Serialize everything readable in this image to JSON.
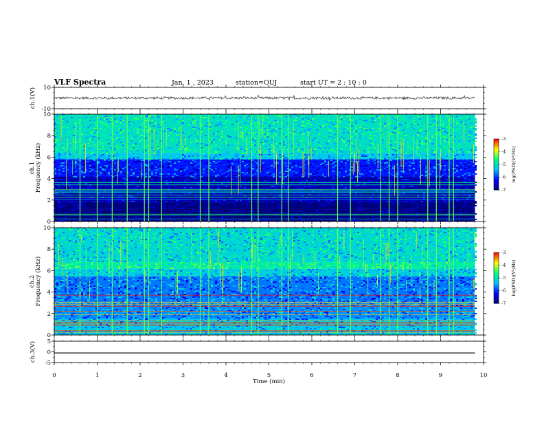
{
  "header": {
    "title": "VLF Spectra",
    "date": "Jan. 1 , 2023",
    "station": "station=OUJ",
    "start_ut": "start UT =  2 : 10 : 0"
  },
  "chart_data": [
    {
      "type": "line",
      "name": "ch1-waveform",
      "ylabel": "ch.1(V)",
      "ylim": [
        -10,
        10
      ],
      "yticks": [
        "10",
        "-10"
      ],
      "xlim": [
        0,
        10
      ],
      "trace_extent_min": [
        0,
        9.8
      ],
      "mean_value": 0,
      "noise_amplitude": 1.2
    },
    {
      "type": "heatmap",
      "name": "ch1-spectrogram",
      "ylabel": "ch.1 Frequency (kHz)",
      "ylim": [
        0,
        10
      ],
      "yticks": [
        "0",
        "2",
        "4",
        "6",
        "8",
        "10"
      ],
      "xlim": [
        0,
        10
      ],
      "data_extent_min": [
        0,
        9.8
      ],
      "z_label": "log(PSD)(V²/Hz)",
      "z_range": [
        -7,
        -3
      ],
      "z_ticks": [
        "-3",
        "-4",
        "-5",
        "-6",
        "-7"
      ],
      "colormap": [
        "#000070",
        "#0000ff",
        "#00bfff",
        "#00ff80",
        "#ffff00",
        "#ff0000",
        "#ffffff"
      ],
      "band_levels": [
        {
          "f": [
            0,
            1.8
          ],
          "level": -6.9
        },
        {
          "f": [
            1.8,
            4.2
          ],
          "level": -6.6
        },
        {
          "f": [
            4.2,
            5.8
          ],
          "level": -6.1
        },
        {
          "f": [
            5.8,
            6.4
          ],
          "level": -5.3
        },
        {
          "f": [
            6.4,
            10
          ],
          "level": -5.0
        }
      ],
      "spherics_at_min": [
        0.6,
        1.0,
        1.35,
        1.7,
        2.1,
        2.2,
        2.5,
        3.4,
        3.6,
        4.6,
        4.75,
        5.3,
        5.45,
        6.6,
        6.9,
        7.6,
        7.8,
        8.0,
        8.7,
        8.9,
        9.2,
        9.3
      ]
    },
    {
      "type": "heatmap",
      "name": "ch2-spectrogram",
      "ylabel": "ch.2 Frequency (kHz)",
      "ylim": [
        0,
        10
      ],
      "yticks": [
        "0",
        "2",
        "4",
        "6",
        "8",
        "10"
      ],
      "xlim": [
        0,
        10
      ],
      "data_extent_min": [
        0,
        9.8
      ],
      "z_label": "log(PSD)(V²/Hz)",
      "z_range": [
        -7,
        -3
      ],
      "z_ticks": [
        "-3",
        "-4",
        "-5",
        "-6",
        "-7"
      ],
      "band_levels": [
        {
          "f": [
            0,
            1.5
          ],
          "level": -5.3
        },
        {
          "f": [
            1.5,
            3.0
          ],
          "level": -5.6
        },
        {
          "f": [
            3.0,
            5.5
          ],
          "level": -5.7
        },
        {
          "f": [
            5.5,
            6.2
          ],
          "level": -5.2
        },
        {
          "f": [
            6.2,
            6.8
          ],
          "level": -4.8
        },
        {
          "f": [
            6.8,
            10
          ],
          "level": -5.1
        }
      ],
      "spherics_at_min": [
        0.6,
        1.0,
        1.35,
        1.7,
        2.1,
        2.2,
        2.5,
        3.4,
        3.6,
        4.6,
        4.75,
        5.3,
        5.45,
        6.6,
        6.9,
        7.6,
        7.8,
        8.0,
        8.7,
        8.9,
        9.2,
        9.3
      ]
    },
    {
      "type": "line",
      "name": "ch3-waveform",
      "ylabel": "ch.3(V)",
      "ylim": [
        -5,
        5
      ],
      "yticks": [
        "5",
        "0",
        "-5"
      ],
      "xlim": [
        0,
        10
      ],
      "trace_extent_min": [
        0,
        9.8
      ],
      "mean_value": -0.5
    }
  ],
  "xaxis": {
    "label": "Time (min)",
    "ticks": [
      "0",
      "1",
      "2",
      "3",
      "4",
      "5",
      "6",
      "7",
      "8",
      "9",
      "10"
    ]
  }
}
